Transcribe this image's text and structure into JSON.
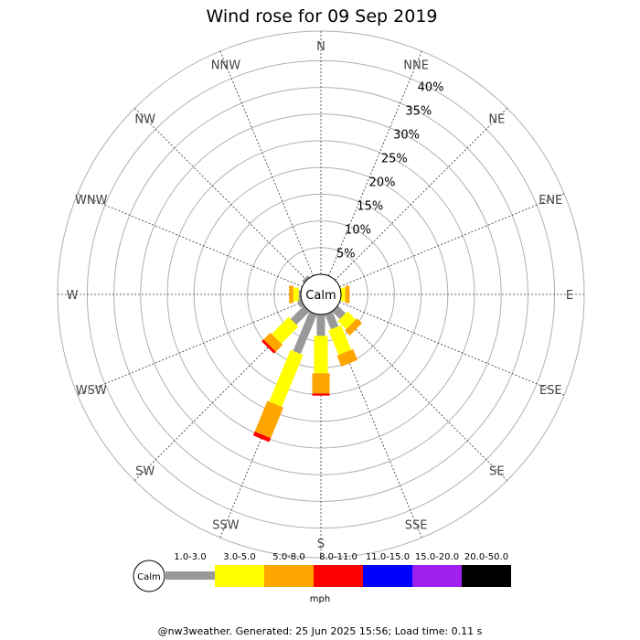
{
  "chart_data": {
    "type": "wind-rose",
    "title": "Wind rose for 09 Sep 2019",
    "directions": [
      "N",
      "NNE",
      "NE",
      "ENE",
      "E",
      "ESE",
      "SE",
      "SSE",
      "S",
      "SSW",
      "SW",
      "WSW",
      "W",
      "WNW",
      "NW",
      "NNW"
    ],
    "rings_percent": [
      5,
      10,
      15,
      20,
      25,
      30,
      35,
      40
    ],
    "ring_labels": [
      "5%",
      "10%",
      "15%",
      "20%",
      "25%",
      "30%",
      "35%",
      "40%"
    ],
    "calm_label": "Calm",
    "speed_bins": [
      {
        "label": "1.0-3.0",
        "color": "#999999"
      },
      {
        "label": "3.0-5.0",
        "color": "#ffff00"
      },
      {
        "label": "5.0-8.0",
        "color": "#ffa500"
      },
      {
        "label": "8.0-11.0",
        "color": "#ff0000"
      },
      {
        "label": "11.0-15.0",
        "color": "#0000ff"
      },
      {
        "label": "15.0-20.0",
        "color": "#a020f0"
      },
      {
        "label": "20.0-50.0",
        "color": "#000000"
      }
    ],
    "unit_label": "mph",
    "series": [
      {
        "direction": "SE",
        "segments": [
          2.0,
          2.2,
          1.3,
          0
        ]
      },
      {
        "direction": "SSE",
        "segments": [
          3.0,
          5.0,
          2.2,
          0
        ]
      },
      {
        "direction": "S",
        "segments": [
          4.0,
          7.0,
          3.8,
          0.4
        ]
      },
      {
        "direction": "SSW",
        "segments": [
          8.0,
          10.5,
          6.2,
          0.8
        ]
      },
      {
        "direction": "SW",
        "segments": [
          3.5,
          4.5,
          1.8,
          0.5
        ]
      },
      {
        "direction": "WSW",
        "segments": [
          0.8,
          0,
          0,
          0
        ]
      },
      {
        "direction": "W",
        "segments": [
          0.4,
          1.0,
          0.8,
          0
        ]
      },
      {
        "direction": "NW",
        "segments": [
          0.5,
          0,
          0,
          0
        ]
      },
      {
        "direction": "E",
        "segments": [
          0,
          0.8,
          0.8,
          0
        ]
      }
    ]
  },
  "footer": "@nw3weather. Generated: 25 Jun 2025 15:56; Load time: 0.11 s"
}
